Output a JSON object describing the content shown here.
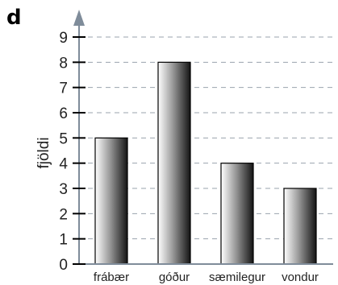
{
  "panel_label": "d",
  "chart_data": {
    "type": "bar",
    "categories": [
      "frábær",
      "góður",
      "sæmilegur",
      "vondur"
    ],
    "values": [
      5,
      8,
      4,
      3
    ],
    "xlabel": "",
    "ylabel": "fjöldi",
    "ylim": [
      0,
      9
    ],
    "yticks": [
      "0",
      "1",
      "2",
      "3",
      "4",
      "5",
      "6",
      "7",
      "8",
      "9"
    ],
    "grid": "horizontal-dashed",
    "legend": "none"
  }
}
